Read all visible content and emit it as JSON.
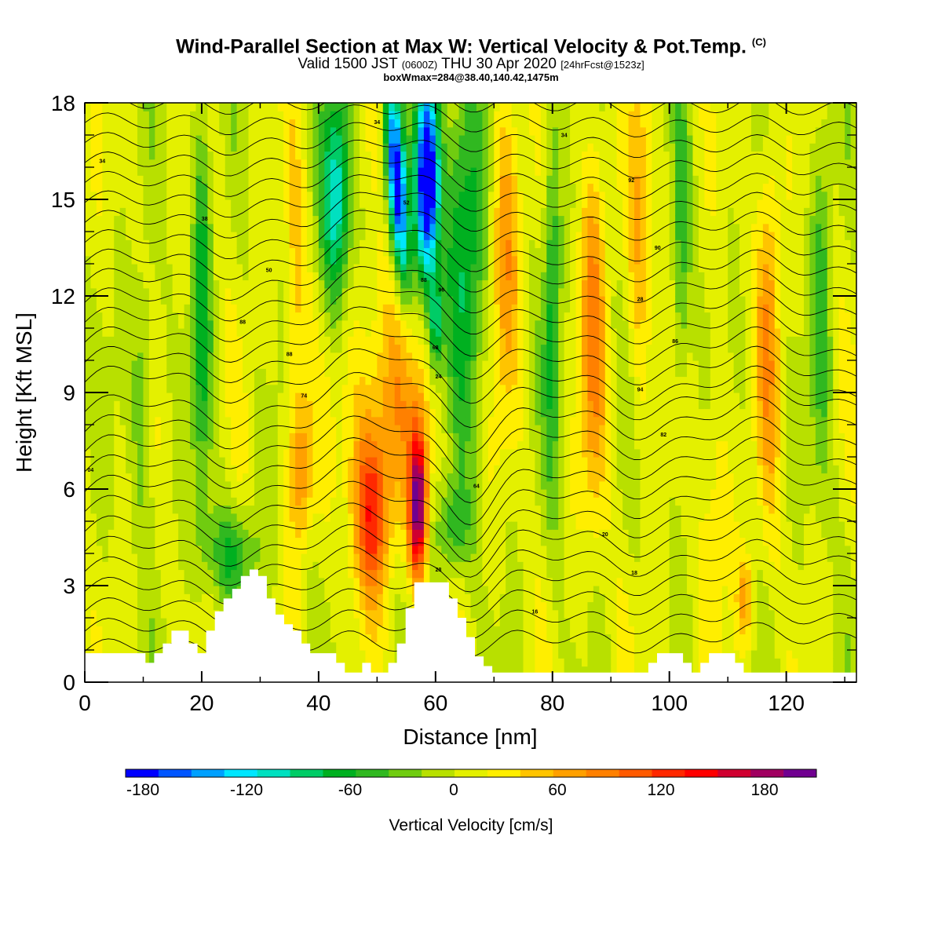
{
  "header": {
    "title": "Wind-Parallel Section at Max W: Vertical Velocity & Pot.Temp.",
    "copyright": "(C)",
    "valid_prefix": "Valid 1500 JST",
    "valid_utc": "(0600Z)",
    "valid_date": "THU 30 Apr 2020",
    "forecast": "[24hrFcst@1523z]",
    "box_info": "boxWmax=284@38.40,140.42,1475m"
  },
  "chart_data": {
    "type": "heatmap",
    "title": "Wind-Parallel Section at Max W: Vertical Velocity & Pot.Temp.",
    "xlabel": "Distance [nm]",
    "ylabel": "Height [Kft MSL]",
    "xlim": [
      0,
      132
    ],
    "ylim": [
      0,
      18
    ],
    "x_ticks": [
      "0",
      "20",
      "40",
      "60",
      "80",
      "100",
      "120"
    ],
    "y_ticks": [
      "0",
      "3",
      "6",
      "9",
      "12",
      "15",
      "18"
    ],
    "colorbar": {
      "label": "Vertical Velocity [cm/s]",
      "ticks": [
        "-180",
        "-120",
        "-60",
        "0",
        "60",
        "120",
        "180"
      ],
      "levels": [
        -190,
        -170,
        -150,
        -130,
        -110,
        -90,
        -70,
        -50,
        -30,
        -10,
        10,
        30,
        50,
        70,
        90,
        110,
        130,
        150,
        170,
        190,
        210
      ],
      "colors": [
        "#0000ff",
        "#0055ff",
        "#00a0ff",
        "#00e6ff",
        "#00e0c0",
        "#00cc66",
        "#00b020",
        "#30b820",
        "#70cc10",
        "#b8e000",
        "#e4f000",
        "#ffee00",
        "#ffc400",
        "#ffa000",
        "#ff8000",
        "#ff5a00",
        "#ff2800",
        "#ff0000",
        "#d00030",
        "#a00060",
        "#700090"
      ]
    },
    "terrain_kft": [
      0.9,
      0.9,
      0.9,
      0.9,
      0.9,
      0.9,
      0.9,
      0.6,
      0.9,
      1.2,
      1.6,
      1.6,
      1.2,
      0.9,
      1.6,
      2.2,
      2.6,
      2.9,
      3.3,
      3.5,
      3.3,
      2.6,
      2.1,
      1.8,
      1.6,
      1.2,
      0.9,
      0.9,
      0.9,
      0.6,
      0.3,
      0.3,
      0.6,
      0.3,
      0.3,
      0.6,
      1.2,
      2.3,
      3.1,
      3.1,
      3.1,
      3.1,
      2.6,
      2.0,
      1.4,
      0.8,
      0.5,
      0.3,
      0.3,
      0.3,
      0.3,
      0.3,
      0.3,
      0.3,
      0.3,
      0.3,
      0.3,
      0.3,
      0.3,
      0.3,
      0.3,
      0.3,
      0.3,
      0.3,
      0.3,
      0.6,
      0.9,
      0.9,
      0.9,
      0.6,
      0.3,
      0.6,
      0.9,
      0.9,
      0.9,
      0.6,
      0.3,
      0.3,
      0.3,
      0.3,
      0.3,
      0.3,
      0.3,
      0.3,
      0.3,
      0.3,
      0.3,
      0.3,
      0.3
    ],
    "w_features_cm_s": [
      {
        "x": 57,
        "y": 5.5,
        "w": 205
      },
      {
        "x": 49,
        "y": 5.2,
        "w": 125
      },
      {
        "x": 58.5,
        "y": 15.5,
        "w": -190
      },
      {
        "x": 51,
        "y": 14.5,
        "w": -130
      },
      {
        "x": 37,
        "y": 6.5,
        "w": 70
      },
      {
        "x": 47,
        "y": 11,
        "w": 60
      },
      {
        "x": 72,
        "y": 15,
        "w": 75
      },
      {
        "x": 88,
        "y": 11,
        "w": 80
      },
      {
        "x": 117,
        "y": 11,
        "w": 70
      },
      {
        "x": 113,
        "y": 3,
        "w": 65
      },
      {
        "x": 20,
        "y": 12,
        "w": -60
      },
      {
        "x": 40,
        "y": 14,
        "w": -80
      },
      {
        "x": 65,
        "y": 13,
        "w": -60
      },
      {
        "x": 80,
        "y": 12,
        "w": -60
      },
      {
        "x": 102,
        "y": 13,
        "w": -50
      },
      {
        "x": 126,
        "y": 12,
        "w": -50
      }
    ],
    "theta_contour_labels": [
      {
        "text": "34",
        "x": 3,
        "y": 16.2
      },
      {
        "text": "38",
        "x": 20.5,
        "y": 14.4
      },
      {
        "text": "50",
        "x": 31.5,
        "y": 12.8
      },
      {
        "text": "88",
        "x": 27,
        "y": 11.2
      },
      {
        "text": "88",
        "x": 35,
        "y": 10.2
      },
      {
        "text": "74",
        "x": 37.5,
        "y": 8.9
      },
      {
        "text": "04",
        "x": 1,
        "y": 6.6
      },
      {
        "text": "34",
        "x": 50,
        "y": 17.4
      },
      {
        "text": "52",
        "x": 55,
        "y": 14.9
      },
      {
        "text": "88",
        "x": 58,
        "y": 12.5
      },
      {
        "text": "96",
        "x": 61,
        "y": 12.2
      },
      {
        "text": "68",
        "x": 60,
        "y": 10.4
      },
      {
        "text": "24",
        "x": 60.5,
        "y": 9.5
      },
      {
        "text": "64",
        "x": 67,
        "y": 6.1
      },
      {
        "text": "28",
        "x": 60.5,
        "y": 3.5
      },
      {
        "text": "34",
        "x": 82,
        "y": 17
      },
      {
        "text": "92",
        "x": 93.5,
        "y": 15.6
      },
      {
        "text": "90",
        "x": 98,
        "y": 13.5
      },
      {
        "text": "28",
        "x": 95,
        "y": 11.9
      },
      {
        "text": "86",
        "x": 101,
        "y": 10.6
      },
      {
        "text": "94",
        "x": 95,
        "y": 9.1
      },
      {
        "text": "82",
        "x": 99,
        "y": 7.7
      },
      {
        "text": "20",
        "x": 89,
        "y": 4.6
      },
      {
        "text": "18",
        "x": 94,
        "y": 3.4
      },
      {
        "text": "16",
        "x": 77,
        "y": 2.2
      }
    ]
  }
}
